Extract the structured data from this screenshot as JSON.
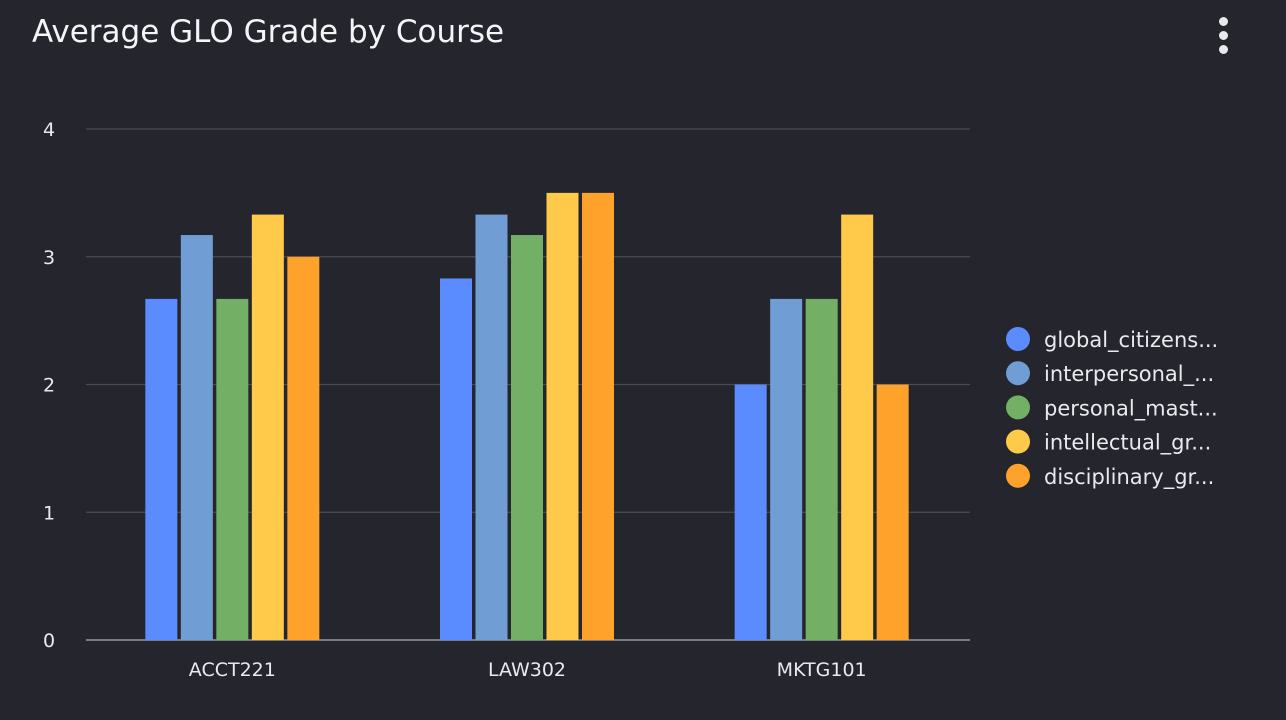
{
  "widget": {
    "title": "Average GLO Grade by Course",
    "menu_icon": "vertical-ellipsis-icon"
  },
  "chart_data": {
    "type": "bar",
    "title": "Average GLO Grade by Course",
    "xlabel": "",
    "ylabel": "",
    "ylim": [
      0,
      4
    ],
    "yticks": [
      "0",
      "1",
      "2",
      "3",
      "4"
    ],
    "grid": true,
    "legend_position": "right",
    "categories": [
      "ACCT221",
      "LAW302",
      "MKTG101"
    ],
    "series": [
      {
        "name": "global_citizens...",
        "color": "#5b8cff",
        "values": [
          2.67,
          2.83,
          2.0
        ]
      },
      {
        "name": "interpersonal_...",
        "color": "#6f9dd4",
        "values": [
          3.17,
          3.33,
          2.67
        ]
      },
      {
        "name": "personal_mast...",
        "color": "#73b066",
        "values": [
          2.67,
          3.17,
          2.67
        ]
      },
      {
        "name": "intellectual_gr...",
        "color": "#ffc94a",
        "values": [
          3.33,
          3.5,
          3.33
        ]
      },
      {
        "name": "disciplinary_gr...",
        "color": "#ffa22c",
        "values": [
          3.0,
          3.5,
          2.0
        ]
      }
    ]
  }
}
